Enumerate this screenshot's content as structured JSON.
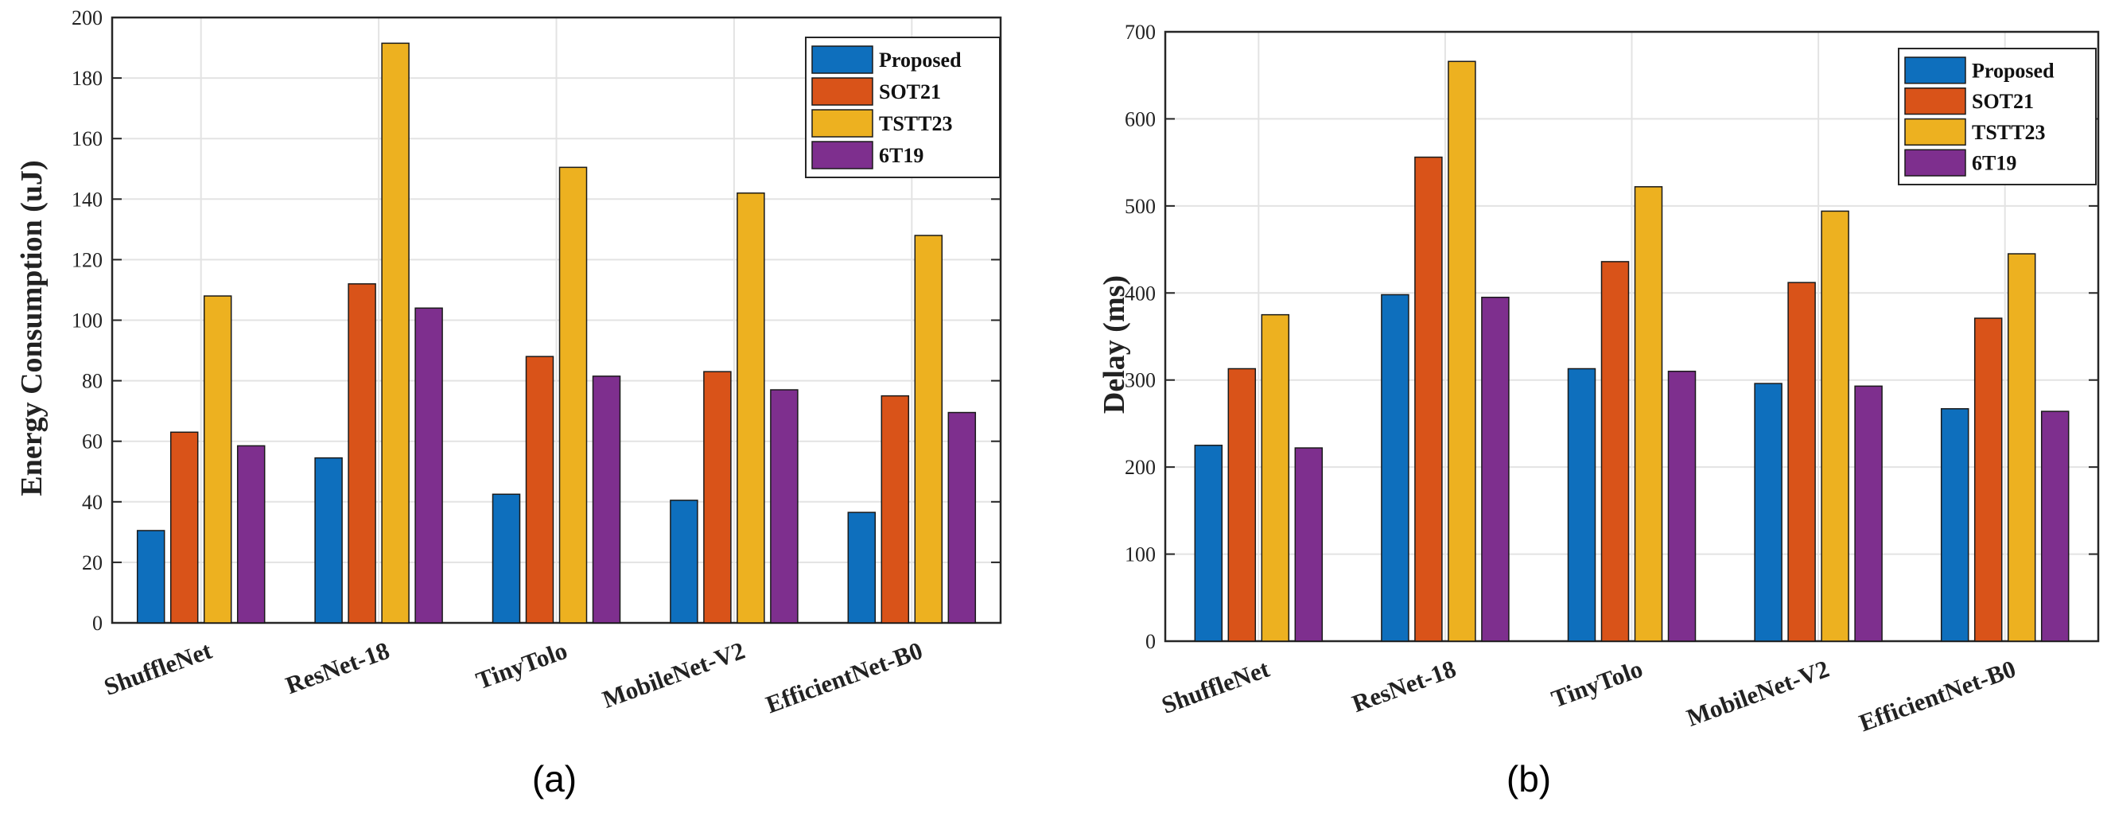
{
  "colors": {
    "Proposed": "#0e6fbd",
    "SOT21": "#d95319",
    "TSTT23": "#edb120",
    "6T19": "#7e2f8e"
  },
  "chart_data": [
    {
      "type": "bar",
      "panel": "(a)",
      "title": "",
      "xlabel": "",
      "ylabel": "Energy Consumption (uJ)",
      "ylim": [
        0,
        200
      ],
      "yticks": [
        0,
        20,
        40,
        60,
        80,
        100,
        120,
        140,
        160,
        180,
        200
      ],
      "categories": [
        "ShuffleNet",
        "ResNet-18",
        "TinyTolo",
        "MobileNet-V2",
        "EfficientNet-B0"
      ],
      "legend_position": "top-right",
      "grid": true,
      "series": [
        {
          "name": "Proposed",
          "values": [
            30.5,
            54.5,
            42.5,
            40.5,
            36.5
          ]
        },
        {
          "name": "SOT21",
          "values": [
            63,
            112,
            88,
            83,
            75
          ]
        },
        {
          "name": "TSTT23",
          "values": [
            108,
            191.5,
            150.5,
            142,
            128
          ]
        },
        {
          "name": "6T19",
          "values": [
            58.5,
            104,
            81.5,
            77,
            69.5
          ]
        }
      ]
    },
    {
      "type": "bar",
      "panel": "(b)",
      "title": "",
      "xlabel": "",
      "ylabel": "Delay (ms)",
      "ylim": [
        0,
        700
      ],
      "yticks": [
        0,
        100,
        200,
        300,
        400,
        500,
        600,
        700
      ],
      "categories": [
        "ShuffleNet",
        "ResNet-18",
        "TinyTolo",
        "MobileNet-V2",
        "EfficientNet-B0"
      ],
      "legend_position": "top-right",
      "grid": true,
      "series": [
        {
          "name": "Proposed",
          "values": [
            225,
            398,
            313,
            296,
            267
          ]
        },
        {
          "name": "SOT21",
          "values": [
            313,
            556,
            436,
            412,
            371
          ]
        },
        {
          "name": "TSTT23",
          "values": [
            375,
            666,
            522,
            494,
            445
          ]
        },
        {
          "name": "6T19",
          "values": [
            222,
            395,
            310,
            293,
            264
          ]
        }
      ]
    }
  ]
}
